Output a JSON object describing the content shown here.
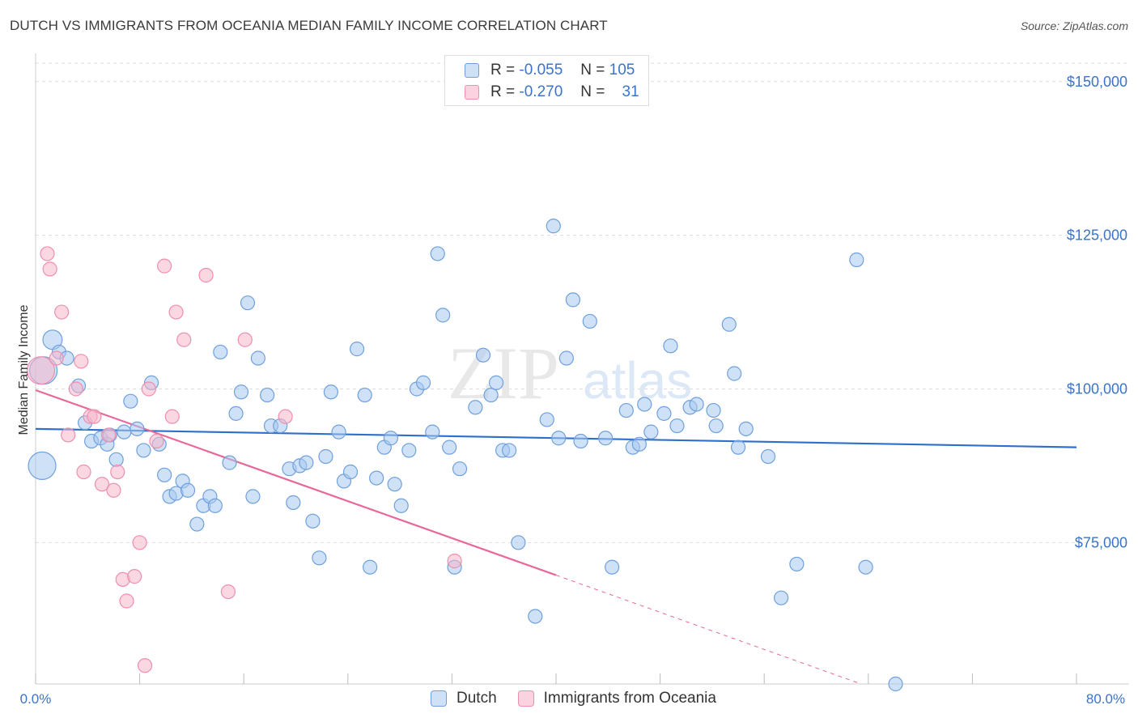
{
  "title": "DUTCH VS IMMIGRANTS FROM OCEANIA MEDIAN FAMILY INCOME CORRELATION CHART",
  "source": "Source: ZipAtlas.com",
  "watermark": "ZIPatlas",
  "legend": {
    "rows": [
      {
        "r_label": "R =",
        "r_value": "-0.055",
        "n_label": "N =",
        "n_value": "105",
        "color": "#a8c8f0"
      },
      {
        "r_label": "R =",
        "r_value": "-0.270",
        "n_label": "N =",
        "n_value": "31",
        "color": "#f7b6cb"
      }
    ]
  },
  "bottom_legend": [
    {
      "label": "Dutch",
      "color": "#a8c8f0"
    },
    {
      "label": "Immigrants from Oceania",
      "color": "#f7b6cb"
    }
  ],
  "chart_data": {
    "type": "scatter",
    "title": "DUTCH VS IMMIGRANTS FROM OCEANIA MEDIAN FAMILY INCOME CORRELATION CHART",
    "xlabel": "",
    "ylabel": "Median Family Income",
    "xlim": [
      0,
      80
    ],
    "ylim": [
      52000,
      153000
    ],
    "x_tick_labels": [
      "0.0%",
      "80.0%"
    ],
    "y_ticks": [
      75000,
      100000,
      125000,
      150000
    ],
    "y_tick_labels": [
      "$75,000",
      "$100,000",
      "$125,000",
      "$150,000"
    ],
    "grid": true,
    "legend_position": "top-center",
    "series": [
      {
        "name": "Dutch",
        "color": "#6fa0dc",
        "fill": "#a8c8f0",
        "trend": {
          "x": [
            0,
            80
          ],
          "y": [
            93500,
            90500
          ],
          "color": "#2f6fcc"
        },
        "points": [
          [
            0.5,
            87500,
            2
          ],
          [
            1.3,
            108000,
            1.4
          ],
          [
            1.8,
            106000,
            1
          ],
          [
            2.4,
            105000,
            1
          ],
          [
            3.3,
            100500,
            1
          ],
          [
            0.6,
            103000,
            2
          ],
          [
            3.8,
            94500,
            1
          ],
          [
            4.3,
            91500,
            1
          ],
          [
            5.0,
            92000,
            1
          ],
          [
            5.5,
            91000,
            1
          ],
          [
            5.7,
            92500,
            1
          ],
          [
            6.2,
            88500,
            1
          ],
          [
            6.8,
            93000,
            1
          ],
          [
            7.3,
            98000,
            1
          ],
          [
            7.8,
            93500,
            1
          ],
          [
            8.3,
            90000,
            1
          ],
          [
            8.9,
            101000,
            1
          ],
          [
            9.5,
            91000,
            1
          ],
          [
            9.9,
            86000,
            1
          ],
          [
            10.3,
            82500,
            1
          ],
          [
            10.8,
            83000,
            1
          ],
          [
            11.3,
            85000,
            1
          ],
          [
            11.7,
            83500,
            1
          ],
          [
            12.4,
            78000,
            1
          ],
          [
            12.9,
            81000,
            1
          ],
          [
            13.4,
            82500,
            1
          ],
          [
            13.8,
            81000,
            1
          ],
          [
            14.2,
            106000,
            1
          ],
          [
            14.9,
            88000,
            1
          ],
          [
            15.4,
            96000,
            1
          ],
          [
            15.8,
            99500,
            1
          ],
          [
            16.3,
            114000,
            1
          ],
          [
            16.7,
            82500,
            1
          ],
          [
            17.1,
            105000,
            1
          ],
          [
            17.8,
            99000,
            1
          ],
          [
            18.1,
            94000,
            1
          ],
          [
            18.8,
            94000,
            1
          ],
          [
            19.5,
            87000,
            1
          ],
          [
            19.8,
            81500,
            1
          ],
          [
            20.3,
            87500,
            1
          ],
          [
            20.8,
            88000,
            1
          ],
          [
            21.3,
            78500,
            1
          ],
          [
            21.8,
            72500,
            1
          ],
          [
            22.3,
            89000,
            1
          ],
          [
            22.7,
            99500,
            1
          ],
          [
            23.3,
            93000,
            1
          ],
          [
            23.7,
            85000,
            1
          ],
          [
            24.2,
            86500,
            1
          ],
          [
            24.7,
            106500,
            1
          ],
          [
            25.3,
            99000,
            1
          ],
          [
            25.7,
            71000,
            1
          ],
          [
            26.2,
            85500,
            1
          ],
          [
            26.8,
            90500,
            1
          ],
          [
            27.3,
            92000,
            1
          ],
          [
            27.6,
            84500,
            1
          ],
          [
            28.1,
            81000,
            1
          ],
          [
            28.7,
            90000,
            1
          ],
          [
            29.3,
            100000,
            1
          ],
          [
            29.8,
            101000,
            1
          ],
          [
            30.5,
            93000,
            1
          ],
          [
            30.9,
            122000,
            1
          ],
          [
            31.3,
            112000,
            1
          ],
          [
            31.8,
            90500,
            1
          ],
          [
            32.2,
            71000,
            1
          ],
          [
            32.6,
            87000,
            1
          ],
          [
            33.8,
            97000,
            1
          ],
          [
            34.4,
            105500,
            1
          ],
          [
            35.0,
            99000,
            1
          ],
          [
            35.4,
            101000,
            1
          ],
          [
            35.9,
            90000,
            1
          ],
          [
            36.4,
            90000,
            1
          ],
          [
            37.1,
            75000,
            1
          ],
          [
            38.4,
            63000,
            1
          ],
          [
            39.3,
            95000,
            1
          ],
          [
            39.8,
            126500,
            1
          ],
          [
            40.2,
            92000,
            1
          ],
          [
            40.8,
            105000,
            1
          ],
          [
            41.3,
            114500,
            1
          ],
          [
            41.9,
            91500,
            1
          ],
          [
            42.6,
            111000,
            1
          ],
          [
            43.8,
            92000,
            1
          ],
          [
            44.3,
            71000,
            1
          ],
          [
            45.4,
            96500,
            1
          ],
          [
            45.9,
            90500,
            1
          ],
          [
            46.4,
            91000,
            1
          ],
          [
            46.8,
            97500,
            1
          ],
          [
            47.3,
            93000,
            1
          ],
          [
            48.3,
            96000,
            1
          ],
          [
            48.8,
            107000,
            1
          ],
          [
            49.3,
            94000,
            1
          ],
          [
            50.3,
            97000,
            1
          ],
          [
            50.8,
            97500,
            1
          ],
          [
            52.1,
            96500,
            1
          ],
          [
            52.3,
            94000,
            1
          ],
          [
            53.3,
            110500,
            1
          ],
          [
            53.7,
            102500,
            1
          ],
          [
            54.0,
            90500,
            1
          ],
          [
            54.6,
            93500,
            1
          ],
          [
            56.3,
            89000,
            1
          ],
          [
            57.3,
            66000,
            1
          ],
          [
            58.5,
            71500,
            1
          ],
          [
            63.1,
            121000,
            1
          ],
          [
            63.8,
            71000,
            1
          ],
          [
            66.1,
            52000,
            1
          ]
        ]
      },
      {
        "name": "Immigrants from Oceania",
        "color": "#ee8fb0",
        "fill": "#f7b6cb",
        "trend": {
          "x": [
            0,
            40
          ],
          "y": [
            99800,
            69700
          ],
          "color": "#e8689a",
          "dashed_x": [
            40,
            80
          ],
          "dashed_y": [
            69700,
            39500
          ]
        },
        "points": [
          [
            0.4,
            103000,
            2
          ],
          [
            0.9,
            122000,
            1
          ],
          [
            1.1,
            119500,
            1
          ],
          [
            1.6,
            105000,
            1
          ],
          [
            2.0,
            112500,
            1
          ],
          [
            2.5,
            92500,
            1
          ],
          [
            3.1,
            100000,
            1
          ],
          [
            3.5,
            104500,
            1
          ],
          [
            3.7,
            86500,
            1
          ],
          [
            4.2,
            95500,
            1
          ],
          [
            4.5,
            95500,
            1
          ],
          [
            5.1,
            84500,
            1
          ],
          [
            5.6,
            92500,
            1
          ],
          [
            6.0,
            83500,
            1
          ],
          [
            6.3,
            86500,
            1
          ],
          [
            6.7,
            69000,
            1
          ],
          [
            7.0,
            65500,
            1
          ],
          [
            7.6,
            69500,
            1
          ],
          [
            8.0,
            75000,
            1
          ],
          [
            8.4,
            55000,
            1
          ],
          [
            8.7,
            100000,
            1
          ],
          [
            9.3,
            91500,
            1
          ],
          [
            9.9,
            120000,
            1
          ],
          [
            10.5,
            95500,
            1
          ],
          [
            10.8,
            112500,
            1
          ],
          [
            11.4,
            108000,
            1
          ],
          [
            13.1,
            118500,
            1
          ],
          [
            14.8,
            67000,
            1
          ],
          [
            16.1,
            108000,
            1
          ],
          [
            19.2,
            95500,
            1
          ],
          [
            32.2,
            72000,
            1
          ]
        ]
      }
    ]
  }
}
